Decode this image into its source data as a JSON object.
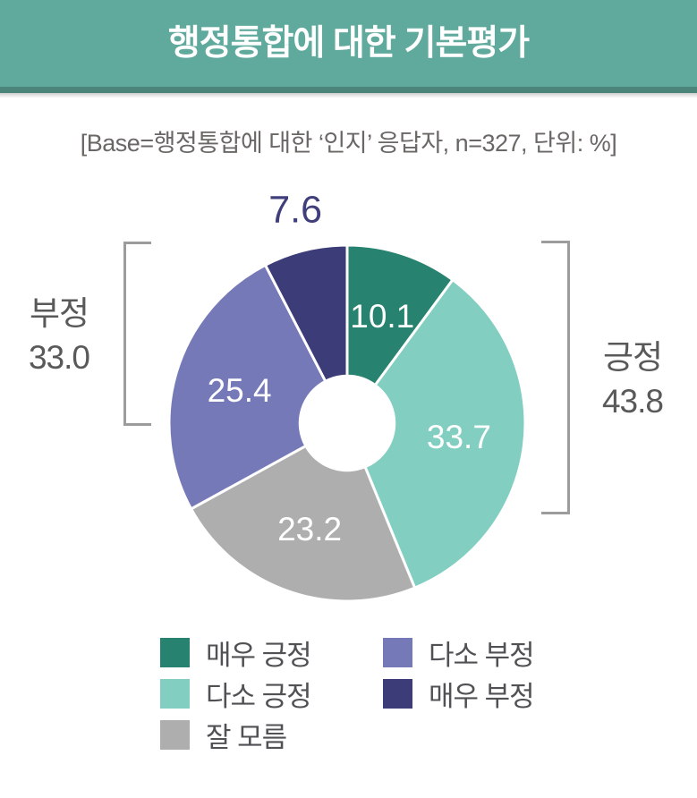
{
  "header": {
    "title": "행정통합에 대한 기본평가"
  },
  "base_note": "[Base=행정통합에 대한 ‘인지’ 응답자, n=327, 단위: %]",
  "colors": {
    "banner": "#5FA99D",
    "banner_stripe": "#4B8478",
    "bracket": "#9C9C9C",
    "group_label_text": "#595959",
    "outside_value_text": "#403F7C"
  },
  "chart_data": {
    "type": "pie",
    "subtype": "donut",
    "title": "행정통합에 대한 기본평가",
    "base_description": "행정통합에 대한 ‘인지’ 응답자",
    "n": 327,
    "unit": "%",
    "start_angle_deg": 0,
    "direction": "clockwise",
    "inner_radius_ratio": 0.265,
    "slices": [
      {
        "label": "매우 긍정",
        "value": 10.1,
        "color": "#27826F",
        "label_position": "inside"
      },
      {
        "label": "다소 긍정",
        "value": 33.7,
        "color": "#82CEC1",
        "label_position": "inside"
      },
      {
        "label": "잘 모름",
        "value": 23.2,
        "color": "#AEAEAE",
        "label_position": "inside"
      },
      {
        "label": "다소 부정",
        "value": 25.4,
        "color": "#7679B8",
        "label_position": "inside"
      },
      {
        "label": "매우 부정",
        "value": 7.6,
        "color": "#3B3C78",
        "label_position": "outside"
      }
    ],
    "groups": [
      {
        "label": "부정",
        "value": 33.0,
        "value_display": "33.0",
        "side": "left"
      },
      {
        "label": "긍정",
        "value": 43.8,
        "value_display": "43.8",
        "side": "right"
      }
    ],
    "legend_columns": [
      [
        0,
        1,
        2
      ],
      [
        3,
        4
      ]
    ],
    "legend_position": "bottom"
  }
}
